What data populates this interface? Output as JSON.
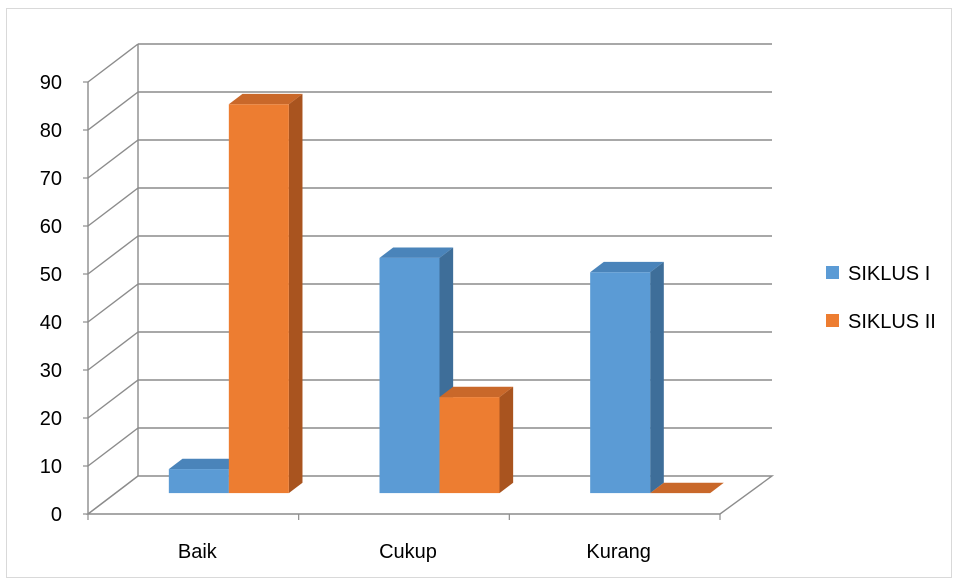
{
  "chart_data": {
    "type": "bar",
    "style": "3d-clustered-column",
    "categories": [
      "Baik",
      "Cukup",
      "Kurang"
    ],
    "series": [
      {
        "name": "SIKLUS I",
        "values": [
          5,
          49,
          46
        ],
        "color": "#5b9bd5",
        "side_color": "#3e6e99",
        "top_color": "#4a84ba"
      },
      {
        "name": "SIKLUS II",
        "values": [
          81,
          20,
          0
        ],
        "color": "#ed7d31",
        "side_color": "#a9541f",
        "top_color": "#c9682a"
      }
    ],
    "yticks": [
      0,
      10,
      20,
      30,
      40,
      50,
      60,
      70,
      80,
      90
    ],
    "ylim": [
      0,
      90
    ],
    "grid": true,
    "legend_position": "right"
  }
}
